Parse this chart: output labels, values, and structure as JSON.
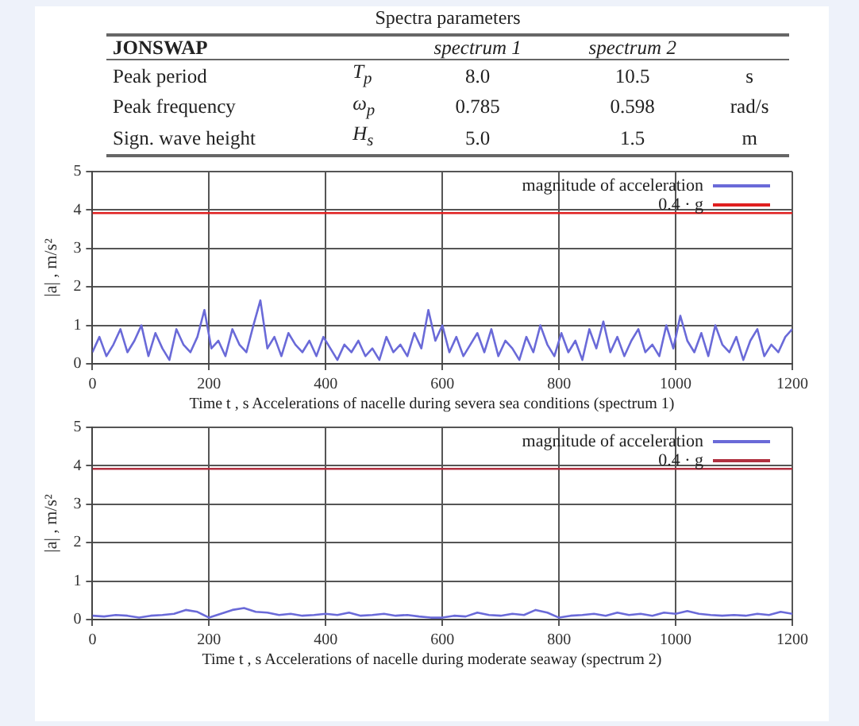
{
  "chart_data": [
    {
      "type": "other",
      "title": "Spectra parameters",
      "annotations": [
        "JONSWAP",
        "spectrum 1",
        "spectrum 2",
        "Peak period",
        "T$_{p}$",
        "8.0",
        "10.5",
        "s",
        "Peak frequency",
        "ω$_{p}$",
        "0.785",
        "0.598",
        "rad/s",
        "Sign. wave height",
        "H$_{s}$",
        "5.0",
        "1.5",
        "m"
      ]
    },
    {
      "type": "line",
      "xlabel": "Time t , s",
      "ylabel": "|a| , m/s²",
      "annotations": [
        "Accelerations of nacelle during severa sea conditions (spectrum 1)"
      ],
      "xlim": [
        0,
        1200
      ],
      "xticks": [
        0,
        200,
        400,
        600,
        800,
        1000,
        1200
      ],
      "ylim": [
        0,
        5
      ],
      "yticks": [
        0,
        1,
        2,
        3,
        4,
        5
      ],
      "grid": true,
      "legend": "top right",
      "series": [
        {
          "name": "magnitude of acceleration",
          "color": "#6a6ad8",
          "x": [
            0,
            12,
            24,
            36,
            48,
            60,
            72,
            84,
            96,
            108,
            120,
            132,
            144,
            156,
            168,
            180,
            192,
            204,
            216,
            228,
            240,
            252,
            264,
            276,
            288,
            300,
            312,
            324,
            336,
            348,
            360,
            372,
            384,
            396,
            408,
            420,
            432,
            444,
            456,
            468,
            480,
            492,
            504,
            516,
            528,
            540,
            552,
            564,
            576,
            588,
            600,
            612,
            624,
            636,
            648,
            660,
            672,
            684,
            696,
            708,
            720,
            732,
            744,
            756,
            768,
            780,
            792,
            804,
            816,
            828,
            840,
            852,
            864,
            876,
            888,
            900,
            912,
            924,
            936,
            948,
            960,
            972,
            984,
            996,
            1008,
            1020,
            1032,
            1044,
            1056,
            1068,
            1080,
            1092,
            1104,
            1116,
            1128,
            1140,
            1152,
            1164,
            1176,
            1188,
            1200
          ],
          "values": [
            0.3,
            0.7,
            0.2,
            0.5,
            0.9,
            0.3,
            0.6,
            1.0,
            0.2,
            0.8,
            0.4,
            0.1,
            0.9,
            0.5,
            0.3,
            0.7,
            1.4,
            0.4,
            0.6,
            0.2,
            0.9,
            0.5,
            0.3,
            1.0,
            1.65,
            0.4,
            0.7,
            0.2,
            0.8,
            0.5,
            0.3,
            0.6,
            0.2,
            0.7,
            0.4,
            0.1,
            0.5,
            0.3,
            0.6,
            0.2,
            0.4,
            0.1,
            0.7,
            0.3,
            0.5,
            0.2,
            0.8,
            0.4,
            1.4,
            0.6,
            1.0,
            0.3,
            0.7,
            0.2,
            0.5,
            0.8,
            0.3,
            0.9,
            0.2,
            0.6,
            0.4,
            0.1,
            0.7,
            0.3,
            1.0,
            0.5,
            0.2,
            0.8,
            0.3,
            0.6,
            0.1,
            0.9,
            0.4,
            1.1,
            0.3,
            0.7,
            0.2,
            0.6,
            0.9,
            0.3,
            0.5,
            0.2,
            1.0,
            0.4,
            1.25,
            0.6,
            0.3,
            0.8,
            0.2,
            1.0,
            0.5,
            0.3,
            0.7,
            0.1,
            0.6,
            0.9,
            0.2,
            0.5,
            0.3,
            0.7,
            0.9
          ]
        },
        {
          "name": "0.4 · g",
          "color": "#e02020",
          "x": [
            0,
            1200
          ],
          "values": [
            3.92,
            3.92
          ]
        }
      ]
    },
    {
      "type": "line",
      "xlabel": "Time t , s",
      "ylabel": "|a| , m/s²",
      "annotations": [
        "Accelerations of nacelle during moderate seaway (spectrum 2)"
      ],
      "xlim": [
        0,
        1200
      ],
      "xticks": [
        0,
        200,
        400,
        600,
        800,
        1000,
        1200
      ],
      "ylim": [
        0,
        5
      ],
      "yticks": [
        0,
        1,
        2,
        3,
        4,
        5
      ],
      "grid": true,
      "legend": "top right",
      "series": [
        {
          "name": "magnitude of acceleration",
          "color": "#6a6ad8",
          "x": [
            0,
            20,
            40,
            60,
            80,
            100,
            120,
            140,
            160,
            180,
            200,
            220,
            240,
            260,
            280,
            300,
            320,
            340,
            360,
            380,
            400,
            420,
            440,
            460,
            480,
            500,
            520,
            540,
            560,
            580,
            600,
            620,
            640,
            660,
            680,
            700,
            720,
            740,
            760,
            780,
            800,
            820,
            840,
            860,
            880,
            900,
            920,
            940,
            960,
            980,
            1000,
            1020,
            1040,
            1060,
            1080,
            1100,
            1120,
            1140,
            1160,
            1180,
            1200
          ],
          "values": [
            0.1,
            0.08,
            0.12,
            0.1,
            0.05,
            0.1,
            0.12,
            0.15,
            0.25,
            0.2,
            0.05,
            0.15,
            0.25,
            0.3,
            0.2,
            0.18,
            0.12,
            0.15,
            0.1,
            0.12,
            0.15,
            0.12,
            0.18,
            0.1,
            0.12,
            0.15,
            0.1,
            0.12,
            0.08,
            0.05,
            0.05,
            0.1,
            0.08,
            0.18,
            0.12,
            0.1,
            0.15,
            0.12,
            0.25,
            0.18,
            0.05,
            0.1,
            0.12,
            0.15,
            0.1,
            0.18,
            0.12,
            0.15,
            0.1,
            0.18,
            0.15,
            0.22,
            0.15,
            0.12,
            0.1,
            0.12,
            0.1,
            0.15,
            0.12,
            0.2,
            0.15
          ]
        },
        {
          "name": "0.4 · g",
          "color": "#b03040",
          "x": [
            0,
            1200
          ],
          "values": [
            3.92,
            3.92
          ]
        }
      ]
    }
  ]
}
